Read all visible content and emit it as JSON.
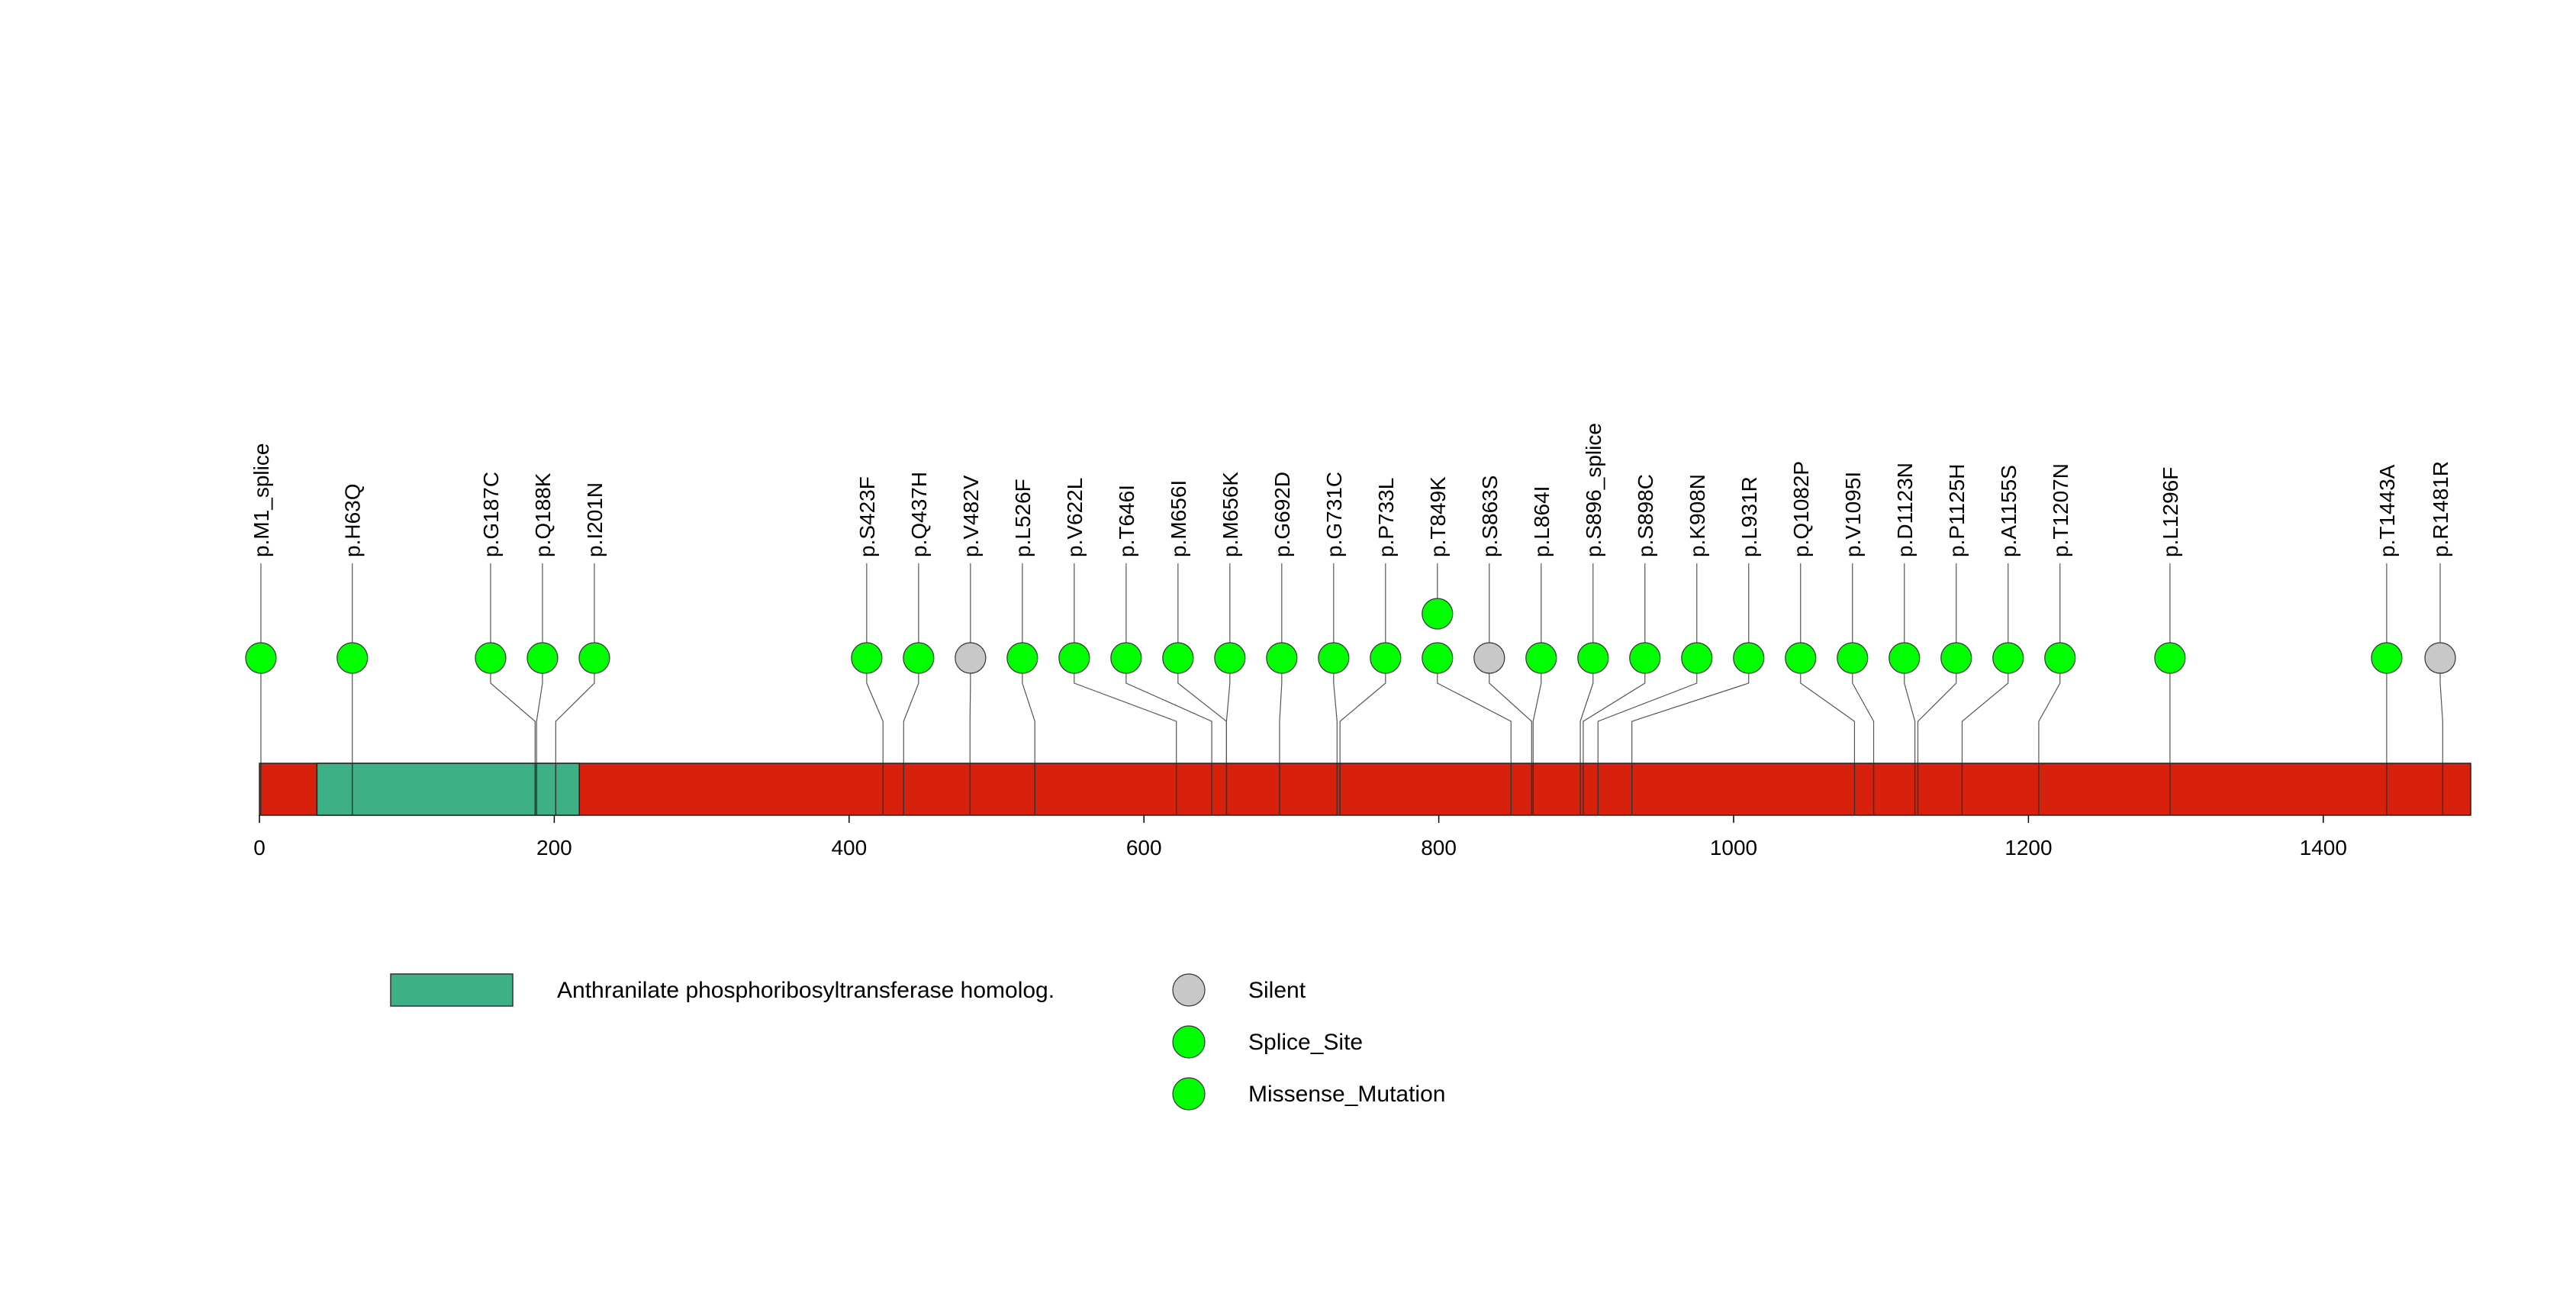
{
  "chart_data": {
    "type": "lollipop",
    "xlim": [
      0,
      1500
    ],
    "ticks": [
      0,
      200,
      400,
      600,
      800,
      1000,
      1200,
      1400
    ],
    "protein_length": 1500,
    "colors": {
      "backbone": "#d8210c",
      "domain": "#3db085",
      "Silent": "#c8c8c8",
      "Splice_Site": "#00ff00",
      "Missense_Mutation": "#00ff00"
    },
    "domains": [
      {
        "name": "Anthranilate phosphoribosyltransferase homolog.",
        "start": 39,
        "end": 217
      }
    ],
    "mutations": [
      {
        "label": "p.M1_splice",
        "pos": 1,
        "type": "Splice_Site",
        "count": 1
      },
      {
        "label": "p.H63Q",
        "pos": 63,
        "type": "Missense_Mutation",
        "count": 1
      },
      {
        "label": "p.G187C",
        "pos": 187,
        "type": "Missense_Mutation",
        "count": 1
      },
      {
        "label": "p.Q188K",
        "pos": 188,
        "type": "Missense_Mutation",
        "count": 1
      },
      {
        "label": "p.I201N",
        "pos": 201,
        "type": "Missense_Mutation",
        "count": 1
      },
      {
        "label": "p.S423F",
        "pos": 423,
        "type": "Missense_Mutation",
        "count": 1
      },
      {
        "label": "p.Q437H",
        "pos": 437,
        "type": "Missense_Mutation",
        "count": 1
      },
      {
        "label": "p.V482V",
        "pos": 482,
        "type": "Silent",
        "count": 1
      },
      {
        "label": "p.L526F",
        "pos": 526,
        "type": "Missense_Mutation",
        "count": 1
      },
      {
        "label": "p.V622L",
        "pos": 622,
        "type": "Missense_Mutation",
        "count": 1
      },
      {
        "label": "p.T646I",
        "pos": 646,
        "type": "Missense_Mutation",
        "count": 1
      },
      {
        "label": "p.M656I",
        "pos": 656,
        "type": "Missense_Mutation",
        "count": 1
      },
      {
        "label": "p.M656K",
        "pos": 656,
        "type": "Missense_Mutation",
        "count": 1
      },
      {
        "label": "p.G692D",
        "pos": 692,
        "type": "Missense_Mutation",
        "count": 1
      },
      {
        "label": "p.G731C",
        "pos": 731,
        "type": "Missense_Mutation",
        "count": 1
      },
      {
        "label": "p.P733L",
        "pos": 733,
        "type": "Missense_Mutation",
        "count": 1
      },
      {
        "label": "p.T849K",
        "pos": 849,
        "type": "Missense_Mutation",
        "count": 2
      },
      {
        "label": "p.S863S",
        "pos": 863,
        "type": "Silent",
        "count": 1
      },
      {
        "label": "p.L864I",
        "pos": 864,
        "type": "Missense_Mutation",
        "count": 1
      },
      {
        "label": "p.S896_splice",
        "pos": 896,
        "type": "Splice_Site",
        "count": 1
      },
      {
        "label": "p.S898C",
        "pos": 898,
        "type": "Missense_Mutation",
        "count": 1
      },
      {
        "label": "p.K908N",
        "pos": 908,
        "type": "Missense_Mutation",
        "count": 1
      },
      {
        "label": "p.L931R",
        "pos": 931,
        "type": "Missense_Mutation",
        "count": 1
      },
      {
        "label": "p.Q1082P",
        "pos": 1082,
        "type": "Missense_Mutation",
        "count": 1
      },
      {
        "label": "p.V1095I",
        "pos": 1095,
        "type": "Missense_Mutation",
        "count": 1
      },
      {
        "label": "p.D1123N",
        "pos": 1123,
        "type": "Missense_Mutation",
        "count": 1
      },
      {
        "label": "p.P1125H",
        "pos": 1125,
        "type": "Missense_Mutation",
        "count": 1
      },
      {
        "label": "p.A1155S",
        "pos": 1155,
        "type": "Missense_Mutation",
        "count": 1
      },
      {
        "label": "p.T1207N",
        "pos": 1207,
        "type": "Missense_Mutation",
        "count": 1
      },
      {
        "label": "p.L1296F",
        "pos": 1296,
        "type": "Missense_Mutation",
        "count": 1
      },
      {
        "label": "p.T1443A",
        "pos": 1443,
        "type": "Missense_Mutation",
        "count": 1
      },
      {
        "label": "p.R1481R",
        "pos": 1481,
        "type": "Silent",
        "count": 1
      }
    ],
    "legend": {
      "domain_label": "Anthranilate phosphoribosyltransferase homolog.",
      "items": [
        {
          "label": "Silent",
          "color": "#c8c8c8"
        },
        {
          "label": "Splice_Site",
          "color": "#00ff00"
        },
        {
          "label": "Missense_Mutation",
          "color": "#00ff00"
        }
      ]
    }
  }
}
